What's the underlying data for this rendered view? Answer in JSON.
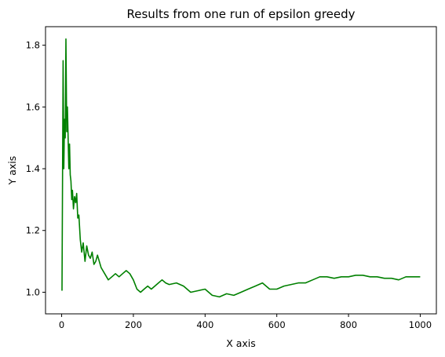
{
  "chart_data": {
    "type": "line",
    "title": "Results from one run of epsilon greedy",
    "xlabel": "X axis",
    "ylabel": "Y axis",
    "xlim": [
      -45,
      1045
    ],
    "ylim": [
      0.93,
      1.86
    ],
    "xticks": [
      0,
      200,
      400,
      600,
      800,
      1000
    ],
    "yticks": [
      1.0,
      1.2,
      1.4,
      1.6,
      1.8
    ],
    "ytick_labels": [
      "1.0",
      "1.2",
      "1.4",
      "1.6",
      "1.8"
    ],
    "grid": false,
    "legend": "none",
    "series": [
      {
        "color": "#008000",
        "x": [
          1,
          4,
          6,
          8,
          10,
          12,
          14,
          16,
          18,
          20,
          22,
          24,
          26,
          28,
          30,
          33,
          36,
          39,
          42,
          45,
          48,
          52,
          56,
          60,
          65,
          70,
          75,
          80,
          85,
          90,
          95,
          100,
          110,
          120,
          130,
          140,
          150,
          160,
          170,
          180,
          190,
          200,
          210,
          220,
          230,
          240,
          250,
          260,
          270,
          280,
          290,
          300,
          320,
          340,
          360,
          380,
          400,
          420,
          440,
          460,
          480,
          500,
          520,
          540,
          560,
          580,
          600,
          620,
          640,
          660,
          680,
          700,
          720,
          740,
          760,
          780,
          800,
          820,
          840,
          860,
          880,
          900,
          920,
          940,
          960,
          980,
          1000
        ],
        "y": [
          1.005,
          1.75,
          1.4,
          1.56,
          1.5,
          1.82,
          1.52,
          1.6,
          1.5,
          1.4,
          1.48,
          1.38,
          1.36,
          1.3,
          1.33,
          1.27,
          1.31,
          1.29,
          1.32,
          1.24,
          1.25,
          1.17,
          1.13,
          1.16,
          1.1,
          1.15,
          1.12,
          1.11,
          1.13,
          1.09,
          1.1,
          1.12,
          1.08,
          1.06,
          1.04,
          1.05,
          1.06,
          1.05,
          1.06,
          1.07,
          1.06,
          1.04,
          1.01,
          1.0,
          1.01,
          1.02,
          1.01,
          1.02,
          1.03,
          1.04,
          1.03,
          1.025,
          1.03,
          1.02,
          1.0,
          1.005,
          1.01,
          0.99,
          0.985,
          0.995,
          0.99,
          1.0,
          1.01,
          1.02,
          1.03,
          1.01,
          1.01,
          1.02,
          1.025,
          1.03,
          1.03,
          1.04,
          1.05,
          1.05,
          1.045,
          1.05,
          1.05,
          1.055,
          1.055,
          1.05,
          1.05,
          1.045,
          1.045,
          1.04,
          1.05,
          1.05,
          1.05
        ]
      }
    ]
  }
}
